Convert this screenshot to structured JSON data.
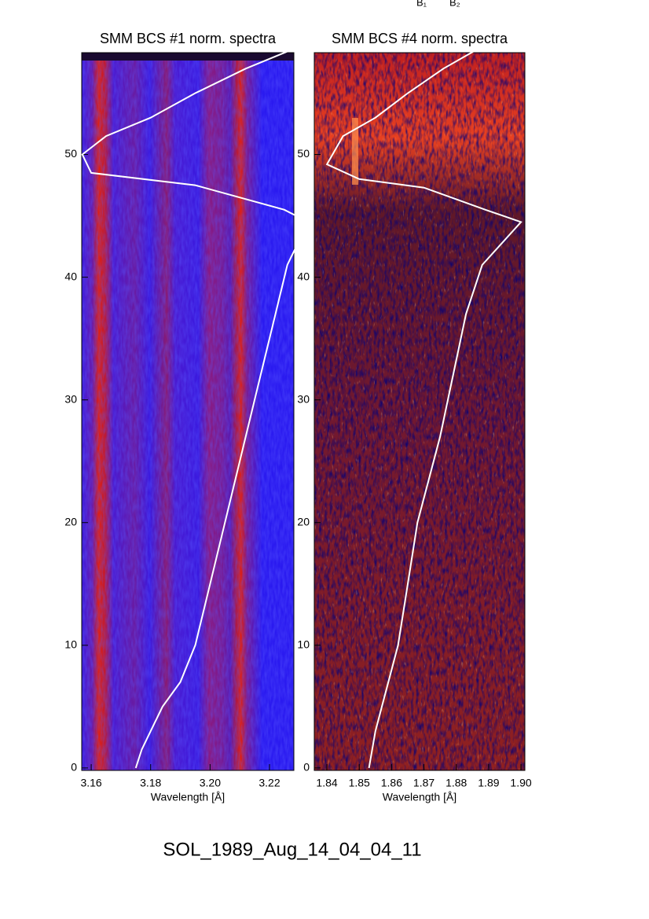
{
  "chart_data": [
    {
      "type": "line",
      "title": "SMM BCS #1 norm. spectra",
      "xlabel": "Wavelength [Å]",
      "xlim": [
        3.1568,
        3.2282
      ],
      "ylim": [
        -0.2,
        58.3
      ],
      "xticks": [
        3.16,
        3.18,
        {
          "value": 3.2,
          "label": "3.20"
        },
        3.22
      ],
      "yticks": [
        0,
        10,
        20,
        30,
        40,
        50
      ],
      "series": [
        {
          "color": "#ffffff",
          "x": [
            3.175,
            3.177,
            3.18,
            3.184,
            3.19,
            3.195,
            3.2,
            3.205,
            3.212,
            3.217,
            3.222,
            3.226,
            3.233,
            3.225,
            3.195,
            3.16,
            3.157,
            3.165,
            3.18,
            3.195,
            3.212,
            3.227
          ],
          "values": [
            0,
            1.5,
            3,
            5,
            7,
            10,
            15,
            20,
            27,
            32,
            37,
            41,
            44.5,
            45.5,
            47.5,
            48.5,
            50,
            51.5,
            53,
            55,
            57,
            58.5
          ]
        }
      ]
    },
    {
      "type": "line",
      "title": "SMM BCS #4 norm. spectra",
      "xlabel": "Wavelength [Å]",
      "xlim": [
        1.8361,
        1.9012
      ],
      "ylim": [
        -0.2,
        58.3
      ],
      "xticks": [
        1.84,
        1.85,
        1.86,
        1.87,
        1.88,
        1.89,
        {
          "value": 1.9,
          "label": "1.90"
        }
      ],
      "yticks": [
        0,
        10,
        20,
        30,
        40,
        50
      ],
      "series": [
        {
          "color": "#ffffff",
          "x": [
            1.853,
            1.854,
            1.855,
            1.857,
            1.86,
            1.862,
            1.865,
            1.868,
            1.875,
            1.879,
            1.883,
            1.888,
            1.9,
            1.889,
            1.87,
            1.85,
            1.84,
            1.845,
            1.855,
            1.865,
            1.876,
            1.886
          ],
          "values": [
            0,
            1.5,
            3,
            5,
            8,
            10,
            15,
            20,
            27,
            32,
            37,
            41,
            44.5,
            45.5,
            47.3,
            48,
            49.2,
            51.5,
            53,
            55,
            57,
            58.5
          ]
        }
      ]
    }
  ],
  "annotations": [
    "B₁",
    "B₂"
  ],
  "caption": "SOL_1989_Aug_14_04_04_11"
}
